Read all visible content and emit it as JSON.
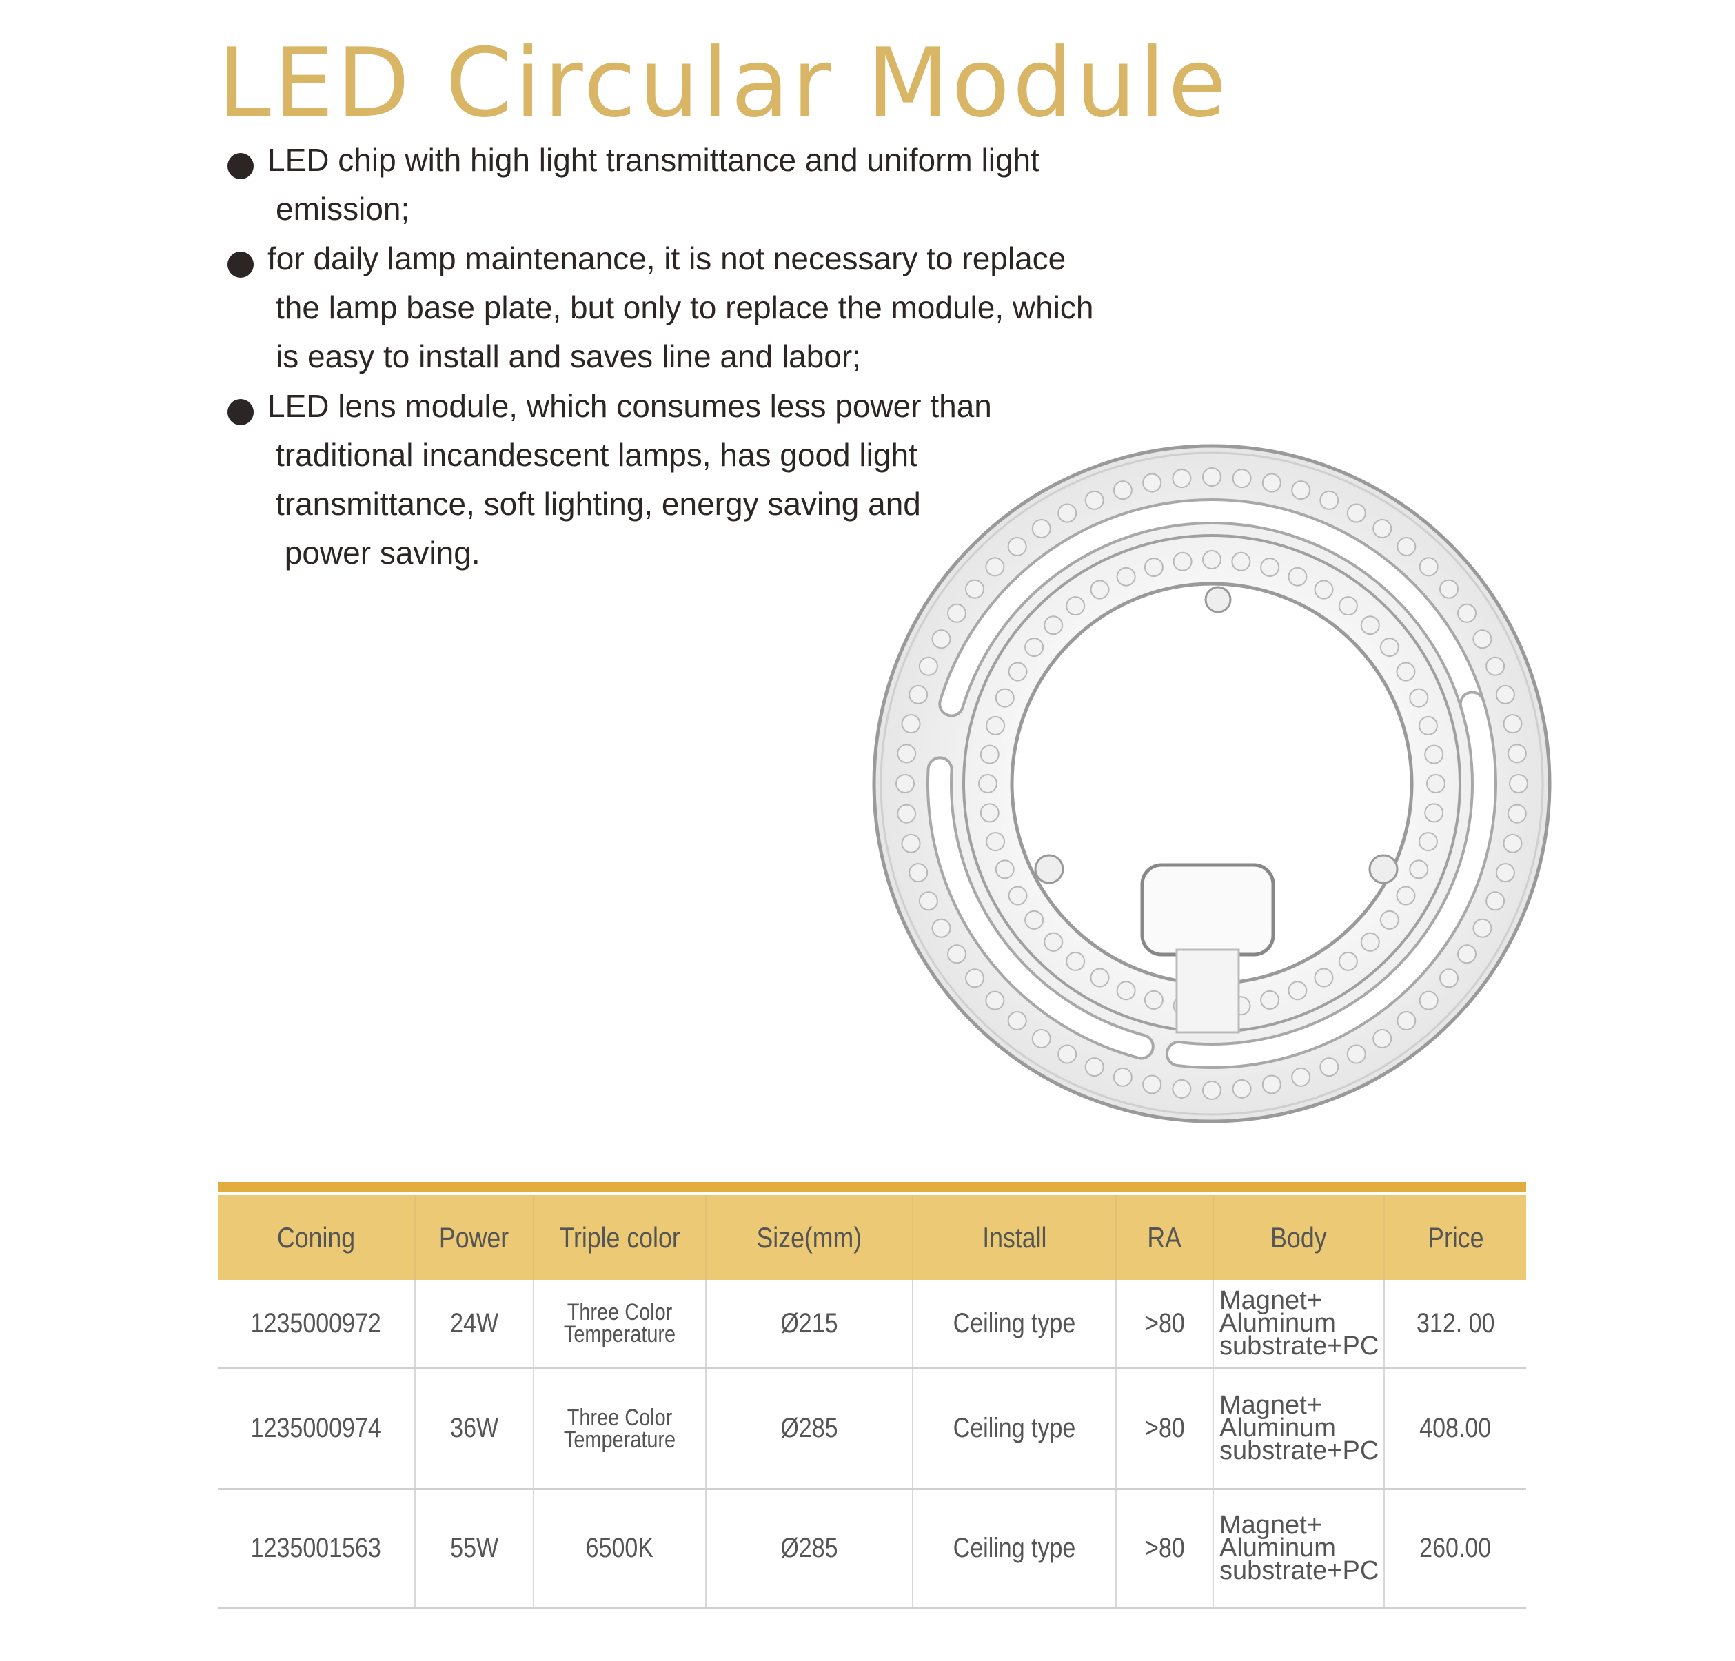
{
  "title": "LED Circular Module",
  "bullets": [
    {
      "lines": [
        "LED chip with high light transmittance and uniform light",
        "emission;"
      ]
    },
    {
      "lines": [
        "for daily lamp maintenance, it is not necessary to replace",
        "the lamp base plate, but only to replace the module, which",
        "is easy to install and saves line and labor;"
      ]
    },
    {
      "lines": [
        "LED lens module, which consumes less power than",
        "traditional incandescent lamps, has good light",
        "transmittance, soft lighting, energy saving and",
        " power saving."
      ]
    }
  ],
  "colors": {
    "title": "#d9b566",
    "header_bg": "#ecc975",
    "bar": "#e2ad3e"
  },
  "table": {
    "headers": [
      "Coning",
      "Power",
      "Triple color",
      "Size(mm)",
      "Install",
      "RA",
      "Body",
      "Price"
    ],
    "rows": [
      {
        "coning": "1235000972",
        "power": "24W",
        "color1": "Three Color",
        "color2": "Temperature",
        "size": "Ø215",
        "install": "Ceiling type",
        "ra": ">80",
        "body1": "Magnet+",
        "body2": "Aluminum",
        "body3": "substrate+PC",
        "price": "312. 00"
      },
      {
        "coning": "1235000974",
        "power": "36W",
        "color1": "Three Color",
        "color2": "Temperature",
        "size": "Ø285",
        "install": "Ceiling type",
        "ra": ">80",
        "body1": "Magnet+",
        "body2": "Aluminum",
        "body3": "substrate+PC",
        "price": "408.00"
      },
      {
        "coning": "1235001563",
        "power": "55W",
        "color1": "6500K",
        "color2": "",
        "size": "Ø285",
        "install": "Ceiling type",
        "ra": ">80",
        "body1": "Magnet+",
        "body2": "Aluminum",
        "body3": "substrate+PC",
        "price": "260.00"
      }
    ]
  }
}
